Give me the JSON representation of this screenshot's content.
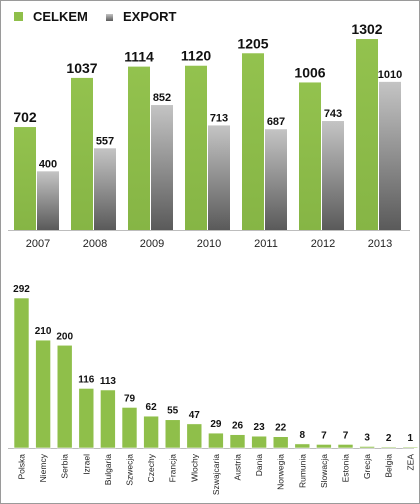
{
  "colors": {
    "green": "#8fbf4a",
    "gray_top": "#b8b8b8",
    "gray_bottom": "#5f5f5f"
  },
  "chart_data": [
    {
      "type": "bar",
      "categories": [
        "2007",
        "2008",
        "2009",
        "2010",
        "2011",
        "2012",
        "2013"
      ],
      "series": [
        {
          "name": "CELKEM",
          "values": [
            702,
            1037,
            1114,
            1120,
            1205,
            1006,
            1302
          ]
        },
        {
          "name": "EXPORT",
          "values": [
            400,
            557,
            852,
            713,
            687,
            743,
            1010
          ]
        }
      ],
      "ylim": [
        0,
        1350
      ],
      "grid": false,
      "legend": "top-left"
    },
    {
      "type": "bar",
      "categories": [
        "Polska",
        "Niemcy",
        "Serbia",
        "Izrael",
        "Bulgaria",
        "Szwecja",
        "Czechy",
        "Francja",
        "Wlochy",
        "Szwajcaria",
        "Austria",
        "Dania",
        "Norwegia",
        "Rumunia",
        "Slowacja",
        "Estonia",
        "Grecja",
        "Belgia",
        "ZEA"
      ],
      "values": [
        292,
        210,
        200,
        116,
        113,
        79,
        62,
        55,
        47,
        29,
        26,
        23,
        22,
        8,
        7,
        7,
        3,
        2,
        1
      ],
      "ylim": [
        0,
        300
      ],
      "grid": false
    }
  ]
}
